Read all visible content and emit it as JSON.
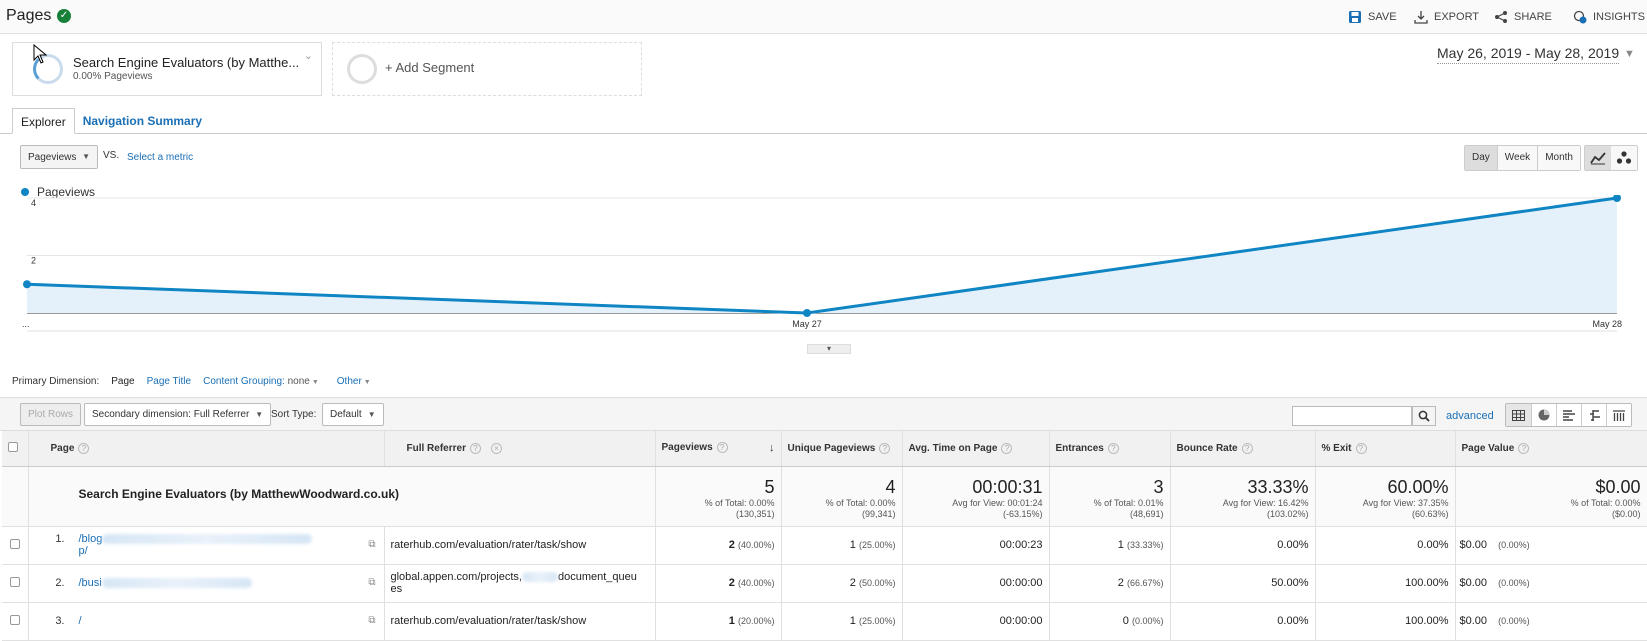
{
  "header": {
    "title": "Pages",
    "actions": [
      {
        "label": "SAVE",
        "icon": "save-icon"
      },
      {
        "label": "EXPORT",
        "icon": "export-icon"
      },
      {
        "label": "SHARE",
        "icon": "share-icon"
      },
      {
        "label": "INSIGHTS",
        "icon": "insights-icon",
        "badge": "8"
      }
    ]
  },
  "segments": {
    "segment1_name": "Search Engine Evaluators (by Matthe...",
    "segment1_sub": "0.00% Pageviews",
    "add_segment": "+ Add Segment"
  },
  "date_range": "May 26, 2019 - May 28, 2019",
  "tabs": [
    {
      "label": "Explorer",
      "active": true
    },
    {
      "label": "Navigation Summary",
      "active": false
    }
  ],
  "chart_controls": {
    "metric": "Pageviews",
    "vs": "VS.",
    "select_metric": "Select a metric",
    "granularity": [
      "Day",
      "Week",
      "Month"
    ],
    "active_granularity": "Day"
  },
  "chart_data": {
    "type": "area",
    "x": [
      "...",
      "May 27",
      "May 28"
    ],
    "series": [
      {
        "name": "Pageviews",
        "values": [
          1,
          0,
          4
        ],
        "color": "#0f85c4"
      }
    ],
    "yticks": [
      2,
      4
    ],
    "ylim": [
      0,
      4
    ]
  },
  "dimensions": {
    "label": "Primary Dimension:",
    "active": "Page",
    "page_title": "Page Title",
    "content_grouping": "Content Grouping:",
    "content_grouping_value": "none",
    "other": "Other"
  },
  "toolbar": {
    "plot_rows": "Plot Rows",
    "secondary_dimension": "Secondary dimension: Full Referrer",
    "sort_type_label": "Sort Type:",
    "sort_type": "Default",
    "advanced": "advanced"
  },
  "table": {
    "columns": [
      "Page",
      "Full Referrer",
      "Pageviews",
      "Unique Pageviews",
      "Avg. Time on Page",
      "Entrances",
      "Bounce Rate",
      "% Exit",
      "Page Value"
    ],
    "totals": {
      "segment": "Search Engine Evaluators (by MatthewWoodward.co.uk)",
      "pageviews": {
        "value": "5",
        "l1": "% of Total: 0.00%",
        "l2": "(130,351)"
      },
      "unique": {
        "value": "4",
        "l1": "% of Total: 0.00%",
        "l2": "(99,341)"
      },
      "avg_time": {
        "value": "00:00:31",
        "l1": "Avg for View: 00:01:24",
        "l2": "(-63.15%)"
      },
      "entrances": {
        "value": "3",
        "l1": "% of Total: 0.01%",
        "l2": "(48,691)"
      },
      "bounce": {
        "value": "33.33%",
        "l1": "Avg for View: 16.42%",
        "l2": "(103.02%)"
      },
      "exit": {
        "value": "60.00%",
        "l1": "Avg for View: 37.35%",
        "l2": "(60.63%)"
      },
      "page_value": {
        "value": "$0.00",
        "l1": "% of Total: 0.00%",
        "l2": "($0.00)"
      }
    },
    "rows": [
      {
        "num": "1.",
        "page_a": "/blog",
        "page_b": "p/",
        "referrer": "raterhub.com/evaluation/rater/task/show",
        "pageviews": "2",
        "pageviews_pct": "(40.00%)",
        "unique": "1",
        "unique_pct": "(25.00%)",
        "avg_time": "00:00:23",
        "entrances": "1",
        "entrances_pct": "(33.33%)",
        "bounce": "0.00%",
        "exit": "0.00%",
        "page_value": "$0.00",
        "page_value_pct": "(0.00%)"
      },
      {
        "num": "2.",
        "page_a": "/busi",
        "page_b": "",
        "referrer": "global.appen.com/projects,",
        "referrer_b": "document_queu",
        "referrer_c": "es",
        "pageviews": "2",
        "pageviews_pct": "(40.00%)",
        "unique": "2",
        "unique_pct": "(50.00%)",
        "avg_time": "00:00:00",
        "entrances": "2",
        "entrances_pct": "(66.67%)",
        "bounce": "50.00%",
        "exit": "100.00%",
        "page_value": "$0.00",
        "page_value_pct": "(0.00%)"
      },
      {
        "num": "3.",
        "page_a": "/",
        "page_b": "",
        "referrer": "raterhub.com/evaluation/rater/task/show",
        "pageviews": "1",
        "pageviews_pct": "(20.00%)",
        "unique": "1",
        "unique_pct": "(25.00%)",
        "avg_time": "00:00:00",
        "entrances": "0",
        "entrances_pct": "(0.00%)",
        "bounce": "0.00%",
        "exit": "100.00%",
        "page_value": "$0.00",
        "page_value_pct": "(0.00%)"
      }
    ]
  }
}
